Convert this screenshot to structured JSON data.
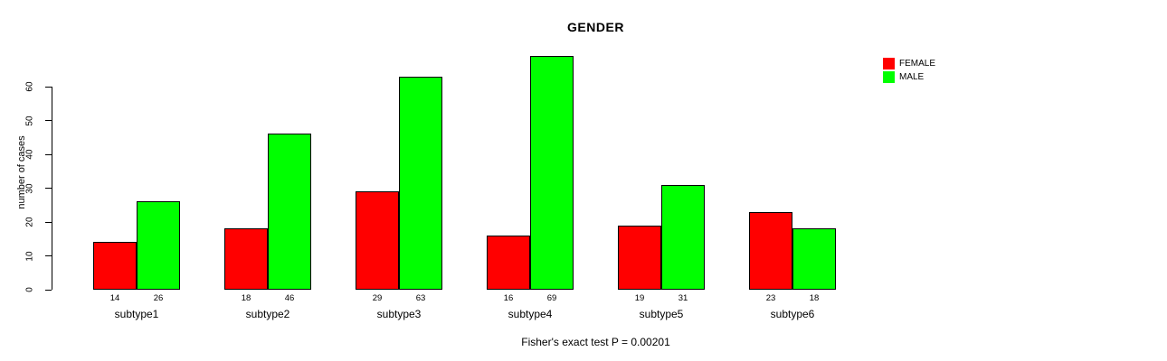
{
  "chart_data": {
    "type": "bar",
    "title": "GENDER",
    "xlabel": "",
    "ylabel": "number of cases",
    "categories": [
      "subtype1",
      "subtype2",
      "subtype3",
      "subtype4",
      "subtype5",
      "subtype6"
    ],
    "series": [
      {
        "name": "FEMALE",
        "color": "#ff0000",
        "values": [
          14,
          18,
          29,
          16,
          19,
          23
        ]
      },
      {
        "name": "MALE",
        "color": "#00ff00",
        "values": [
          26,
          46,
          63,
          69,
          31,
          18
        ]
      }
    ],
    "show_value_labels": true,
    "ylim": [
      0,
      60
    ],
    "yticks": [
      0,
      10,
      20,
      30,
      40,
      50,
      60
    ],
    "grid": false,
    "legend_position": "top-right",
    "caption": "Fisher's exact test P = 0.00201",
    "colors": {
      "background": "#ffffff",
      "axis": "#000000",
      "bar_border": "#000000"
    }
  }
}
